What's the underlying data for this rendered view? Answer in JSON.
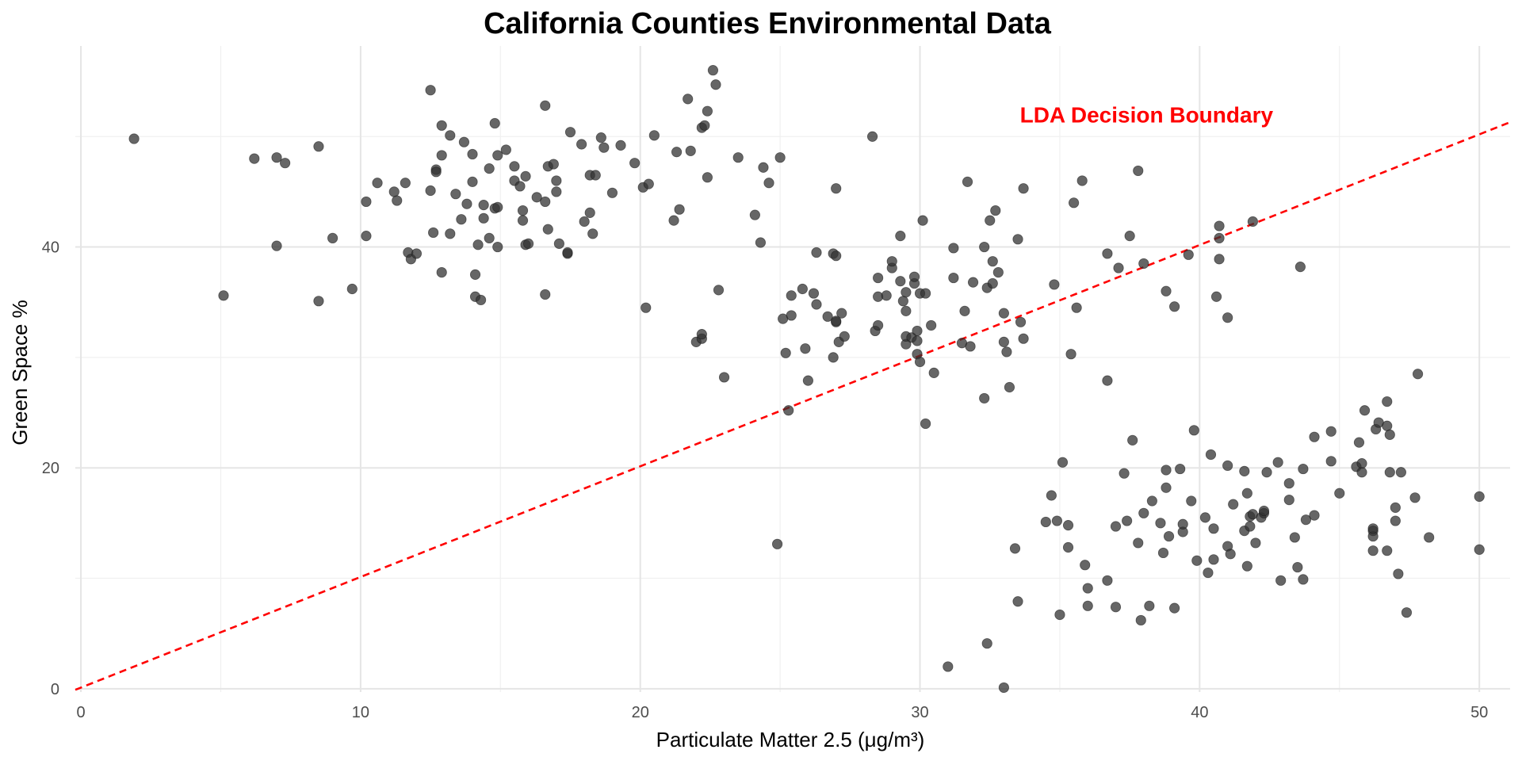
{
  "chart_data": {
    "type": "scatter",
    "title": "California Counties Environmental Data",
    "xlabel": "Particulate Matter 2.5 (μg/m³)",
    "ylabel": "Green Space %",
    "xlim": [
      -0.2,
      51.1
    ],
    "ylim": [
      -0.3,
      58.2
    ],
    "x_ticks": [
      0,
      10,
      20,
      30,
      40,
      50
    ],
    "y_ticks": [
      0,
      20,
      40
    ],
    "grid": true,
    "point_color": "#333333",
    "point_opacity": 0.75,
    "annotation": {
      "text": "LDA Decision Boundary",
      "color": "#ff0000",
      "x": 38.1,
      "y": 52
    },
    "decision_boundary": {
      "style": "dashed",
      "color": "#ff0000",
      "x": [
        -0.2,
        51.1
      ],
      "y": [
        -0.1,
        51.3
      ]
    },
    "series": [
      {
        "points": [
          [
            1.9,
            49.8
          ],
          [
            5.1,
            35.6
          ],
          [
            6.2,
            48.0
          ],
          [
            7.0,
            40.1
          ],
          [
            7.0,
            48.1
          ],
          [
            7.3,
            47.6
          ],
          [
            8.5,
            49.1
          ],
          [
            8.5,
            35.1
          ],
          [
            9.0,
            40.8
          ],
          [
            9.7,
            36.2
          ],
          [
            10.2,
            44.1
          ],
          [
            10.2,
            41.0
          ],
          [
            10.6,
            45.8
          ],
          [
            11.2,
            45.0
          ],
          [
            11.3,
            44.2
          ],
          [
            11.6,
            45.8
          ],
          [
            11.7,
            39.5
          ],
          [
            11.8,
            38.9
          ],
          [
            12.0,
            39.4
          ],
          [
            12.5,
            54.2
          ],
          [
            12.5,
            45.1
          ],
          [
            12.6,
            41.3
          ],
          [
            12.7,
            47.0
          ],
          [
            12.7,
            46.8
          ],
          [
            12.9,
            51.0
          ],
          [
            12.9,
            48.3
          ],
          [
            12.9,
            37.7
          ],
          [
            13.2,
            50.1
          ],
          [
            13.2,
            41.2
          ],
          [
            13.4,
            44.8
          ],
          [
            13.6,
            42.5
          ],
          [
            13.7,
            49.5
          ],
          [
            13.8,
            43.9
          ],
          [
            14.0,
            45.9
          ],
          [
            14.0,
            48.4
          ],
          [
            14.1,
            37.5
          ],
          [
            14.1,
            35.5
          ],
          [
            14.2,
            40.2
          ],
          [
            14.3,
            35.2
          ],
          [
            14.4,
            43.8
          ],
          [
            14.4,
            42.6
          ],
          [
            14.6,
            47.1
          ],
          [
            14.6,
            40.8
          ],
          [
            14.8,
            43.5
          ],
          [
            14.8,
            51.2
          ],
          [
            14.9,
            48.3
          ],
          [
            14.9,
            40.0
          ],
          [
            14.9,
            43.6
          ],
          [
            15.2,
            48.8
          ],
          [
            15.5,
            46.0
          ],
          [
            15.5,
            47.3
          ],
          [
            15.7,
            45.5
          ],
          [
            15.8,
            43.3
          ],
          [
            15.8,
            42.4
          ],
          [
            15.9,
            46.4
          ],
          [
            15.9,
            40.2
          ],
          [
            16.0,
            40.3
          ],
          [
            16.3,
            44.5
          ],
          [
            16.6,
            52.8
          ],
          [
            16.6,
            44.1
          ],
          [
            16.6,
            35.7
          ],
          [
            16.7,
            47.3
          ],
          [
            16.7,
            41.6
          ],
          [
            16.9,
            47.5
          ],
          [
            17.0,
            46.0
          ],
          [
            17.0,
            45.0
          ],
          [
            17.1,
            40.3
          ],
          [
            17.4,
            39.4
          ],
          [
            17.4,
            39.5
          ],
          [
            17.5,
            50.4
          ],
          [
            17.9,
            49.3
          ],
          [
            18.0,
            42.3
          ],
          [
            18.2,
            43.1
          ],
          [
            18.2,
            46.5
          ],
          [
            18.3,
            41.2
          ],
          [
            18.4,
            46.5
          ],
          [
            18.6,
            49.9
          ],
          [
            18.7,
            49.0
          ],
          [
            19.0,
            44.9
          ],
          [
            19.3,
            49.2
          ],
          [
            19.8,
            47.6
          ],
          [
            20.1,
            45.4
          ],
          [
            20.2,
            34.5
          ],
          [
            20.3,
            45.7
          ],
          [
            20.5,
            50.1
          ],
          [
            21.2,
            42.4
          ],
          [
            21.3,
            48.6
          ],
          [
            21.4,
            43.4
          ],
          [
            21.7,
            53.4
          ],
          [
            21.8,
            48.7
          ],
          [
            22.0,
            31.4
          ],
          [
            22.2,
            31.7
          ],
          [
            22.2,
            32.1
          ],
          [
            22.2,
            50.8
          ],
          [
            22.3,
            51.0
          ],
          [
            22.4,
            52.3
          ],
          [
            22.4,
            46.3
          ],
          [
            22.6,
            56.0
          ],
          [
            22.7,
            54.7
          ],
          [
            22.8,
            36.1
          ],
          [
            23.0,
            28.2
          ],
          [
            23.5,
            48.1
          ],
          [
            24.1,
            42.9
          ],
          [
            24.3,
            40.4
          ],
          [
            24.4,
            47.2
          ],
          [
            24.6,
            45.8
          ],
          [
            24.9,
            13.1
          ],
          [
            25.0,
            48.1
          ],
          [
            25.1,
            33.5
          ],
          [
            25.2,
            30.4
          ],
          [
            25.3,
            25.2
          ],
          [
            25.4,
            35.6
          ],
          [
            25.4,
            33.8
          ],
          [
            25.8,
            36.2
          ],
          [
            25.9,
            30.8
          ],
          [
            26.0,
            27.9
          ],
          [
            26.2,
            35.8
          ],
          [
            26.3,
            39.5
          ],
          [
            26.3,
            34.8
          ],
          [
            26.7,
            33.7
          ],
          [
            26.9,
            30.0
          ],
          [
            26.9,
            39.4
          ],
          [
            27.0,
            33.2
          ],
          [
            27.0,
            33.3
          ],
          [
            27.0,
            39.2
          ],
          [
            27.0,
            45.3
          ],
          [
            27.1,
            31.4
          ],
          [
            27.2,
            34.0
          ],
          [
            27.3,
            31.9
          ],
          [
            28.3,
            50.0
          ],
          [
            28.4,
            32.4
          ],
          [
            28.5,
            35.5
          ],
          [
            28.5,
            37.2
          ],
          [
            28.5,
            32.9
          ],
          [
            28.8,
            35.6
          ],
          [
            29.0,
            38.1
          ],
          [
            29.0,
            38.7
          ],
          [
            29.3,
            36.9
          ],
          [
            29.3,
            41.0
          ],
          [
            29.4,
            35.1
          ],
          [
            29.5,
            31.2
          ],
          [
            29.5,
            31.9
          ],
          [
            29.5,
            35.9
          ],
          [
            29.5,
            34.2
          ],
          [
            29.7,
            31.8
          ],
          [
            29.8,
            36.7
          ],
          [
            29.8,
            37.3
          ],
          [
            29.9,
            32.4
          ],
          [
            29.9,
            31.5
          ],
          [
            29.9,
            30.3
          ],
          [
            30.0,
            29.6
          ],
          [
            30.0,
            35.8
          ],
          [
            30.1,
            42.4
          ],
          [
            30.2,
            35.8
          ],
          [
            30.2,
            24.0
          ],
          [
            30.4,
            32.9
          ],
          [
            30.5,
            28.6
          ],
          [
            31.0,
            2.0
          ],
          [
            31.2,
            37.2
          ],
          [
            31.2,
            39.9
          ],
          [
            31.5,
            31.3
          ],
          [
            31.6,
            34.2
          ],
          [
            31.7,
            45.9
          ],
          [
            31.8,
            31.0
          ],
          [
            31.9,
            36.8
          ],
          [
            32.3,
            40.0
          ],
          [
            32.3,
            26.3
          ],
          [
            32.4,
            36.3
          ],
          [
            32.4,
            4.1
          ],
          [
            32.5,
            42.4
          ],
          [
            32.6,
            38.7
          ],
          [
            32.6,
            36.7
          ],
          [
            32.7,
            43.3
          ],
          [
            32.8,
            37.7
          ],
          [
            33.0,
            34.0
          ],
          [
            33.0,
            31.4
          ],
          [
            33.0,
            0.1
          ],
          [
            33.1,
            30.5
          ],
          [
            33.2,
            27.3
          ],
          [
            33.4,
            12.7
          ],
          [
            33.5,
            7.9
          ],
          [
            33.5,
            40.7
          ],
          [
            33.6,
            33.2
          ],
          [
            33.7,
            45.3
          ],
          [
            33.7,
            31.7
          ],
          [
            34.5,
            15.1
          ],
          [
            34.7,
            17.5
          ],
          [
            34.8,
            36.6
          ],
          [
            34.9,
            15.2
          ],
          [
            35.0,
            6.7
          ],
          [
            35.1,
            20.5
          ],
          [
            35.3,
            14.8
          ],
          [
            35.3,
            12.8
          ],
          [
            35.4,
            30.3
          ],
          [
            35.5,
            44.0
          ],
          [
            35.6,
            34.5
          ],
          [
            35.8,
            46.0
          ],
          [
            35.9,
            11.2
          ],
          [
            36.0,
            7.5
          ],
          [
            36.0,
            9.1
          ],
          [
            36.7,
            27.9
          ],
          [
            36.7,
            9.8
          ],
          [
            36.7,
            39.4
          ],
          [
            37.0,
            7.4
          ],
          [
            37.0,
            14.7
          ],
          [
            37.1,
            38.1
          ],
          [
            37.3,
            19.5
          ],
          [
            37.4,
            15.2
          ],
          [
            37.5,
            41.0
          ],
          [
            37.6,
            22.5
          ],
          [
            37.8,
            46.9
          ],
          [
            37.8,
            13.2
          ],
          [
            37.9,
            6.2
          ],
          [
            38.0,
            38.5
          ],
          [
            38.0,
            15.9
          ],
          [
            38.2,
            7.5
          ],
          [
            38.3,
            17.0
          ],
          [
            38.6,
            15.0
          ],
          [
            38.7,
            12.3
          ],
          [
            38.8,
            19.8
          ],
          [
            38.8,
            36.0
          ],
          [
            38.8,
            18.2
          ],
          [
            38.9,
            13.8
          ],
          [
            39.1,
            34.6
          ],
          [
            39.1,
            7.3
          ],
          [
            39.3,
            19.9
          ],
          [
            39.4,
            14.2
          ],
          [
            39.4,
            14.9
          ],
          [
            39.6,
            39.3
          ],
          [
            39.7,
            17.0
          ],
          [
            39.8,
            23.4
          ],
          [
            39.9,
            11.6
          ],
          [
            40.2,
            15.5
          ],
          [
            40.3,
            10.5
          ],
          [
            40.4,
            21.2
          ],
          [
            40.5,
            11.7
          ],
          [
            40.5,
            14.5
          ],
          [
            40.6,
            35.5
          ],
          [
            40.7,
            38.9
          ],
          [
            40.7,
            40.8
          ],
          [
            40.7,
            41.9
          ],
          [
            41.0,
            12.9
          ],
          [
            41.0,
            20.2
          ],
          [
            41.0,
            33.6
          ],
          [
            41.1,
            12.2
          ],
          [
            41.2,
            16.7
          ],
          [
            41.6,
            19.7
          ],
          [
            41.6,
            14.3
          ],
          [
            41.7,
            17.7
          ],
          [
            41.7,
            11.1
          ],
          [
            41.8,
            14.7
          ],
          [
            41.8,
            15.6
          ],
          [
            41.9,
            42.3
          ],
          [
            41.9,
            15.8
          ],
          [
            42.0,
            13.2
          ],
          [
            42.2,
            15.5
          ],
          [
            42.3,
            15.9
          ],
          [
            42.3,
            16.1
          ],
          [
            42.4,
            19.6
          ],
          [
            42.8,
            20.5
          ],
          [
            42.9,
            9.8
          ],
          [
            43.2,
            18.6
          ],
          [
            43.2,
            17.1
          ],
          [
            43.4,
            13.7
          ],
          [
            43.5,
            11.0
          ],
          [
            43.6,
            38.2
          ],
          [
            43.7,
            19.9
          ],
          [
            43.7,
            9.9
          ],
          [
            43.8,
            15.3
          ],
          [
            44.1,
            15.7
          ],
          [
            44.1,
            22.8
          ],
          [
            44.7,
            23.3
          ],
          [
            44.7,
            20.6
          ],
          [
            45.0,
            17.7
          ],
          [
            45.6,
            20.1
          ],
          [
            45.7,
            22.3
          ],
          [
            45.8,
            19.6
          ],
          [
            45.8,
            20.4
          ],
          [
            45.9,
            25.2
          ],
          [
            46.2,
            14.3
          ],
          [
            46.2,
            13.8
          ],
          [
            46.2,
            12.5
          ],
          [
            46.2,
            14.5
          ],
          [
            46.3,
            23.5
          ],
          [
            46.4,
            24.1
          ],
          [
            46.7,
            26.0
          ],
          [
            46.7,
            23.8
          ],
          [
            46.7,
            12.5
          ],
          [
            46.8,
            23.0
          ],
          [
            46.8,
            19.6
          ],
          [
            47.0,
            15.2
          ],
          [
            47.0,
            16.4
          ],
          [
            47.1,
            10.4
          ],
          [
            47.2,
            19.6
          ],
          [
            47.4,
            6.9
          ],
          [
            47.7,
            17.3
          ],
          [
            47.8,
            28.5
          ],
          [
            48.2,
            13.7
          ],
          [
            50.0,
            17.4
          ],
          [
            50.0,
            12.6
          ]
        ]
      }
    ]
  }
}
